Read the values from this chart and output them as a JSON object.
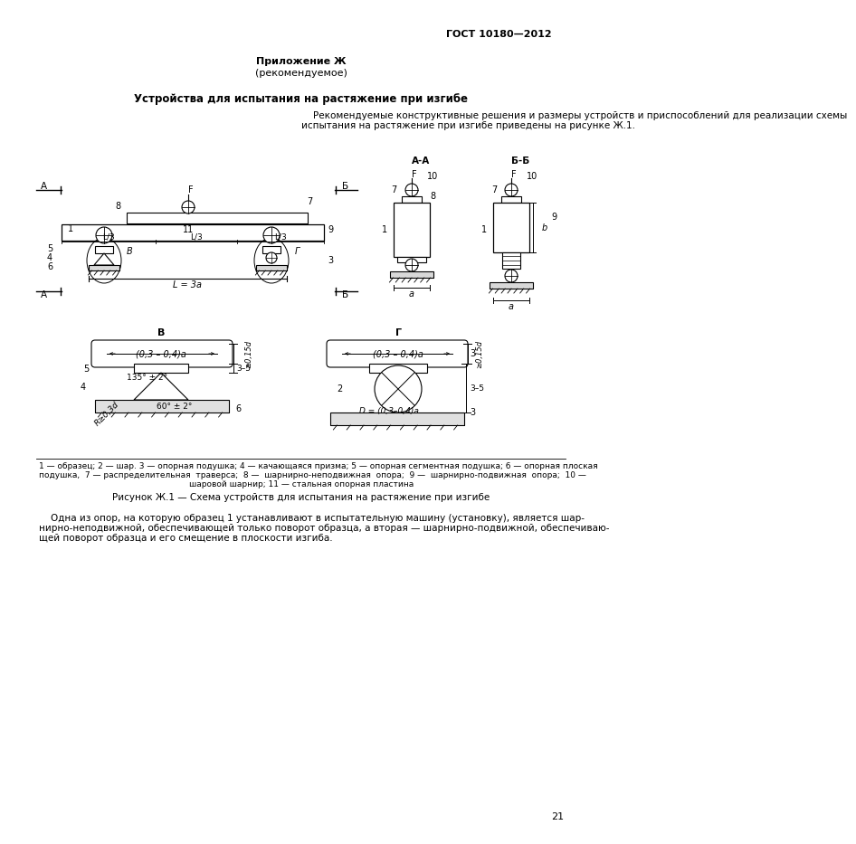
{
  "page_title": "ГОСТ 10180—2012",
  "appendix_title": "Приложение Ж",
  "appendix_subtitle": "(рекомендуемое)",
  "section_title": "Устройства для испытания на растяжение при изгибе",
  "intro_line1": "    Рекомендуемые конструктивные решения и размеры устройств и приспособлений для реализации схемы",
  "intro_line2": "испытания на растяжение при изгибе приведены на рисунке Ж.1.",
  "legend_line1": "1 — образец; 2 — шар. 3 — опорная подушка; 4 — качающаяся призма; 5 — опорная сегментная подушка; 6 — опорная плоская",
  "legend_line2": "подушка,  7 — распределительная  траверса;  8 —  шарнирно-неподвижная  опора;  9 —  шарнирно-подвижная  опора;  10 —",
  "legend_line3": "шаровой шарнир; 11 — стальная опорная пластина",
  "figure_caption": "Рисунок Ж.1 — Схема устройств для испытания на растяжение при изгибе",
  "footer_line1": "    Одна из опор, на которую образец 1 устанавливают в испытательную машину (установку), является шар-",
  "footer_line2": "нирно-неподвижной, обеспечивающей только поворот образца, а вторая — шарнирно-подвижной, обеспечиваю-",
  "footer_line3": "щей поворот образца и его смещение в плоскости изгиба.",
  "page_number": "21",
  "bg_color": "#ffffff",
  "text_color": "#000000",
  "line_color": "#000000"
}
